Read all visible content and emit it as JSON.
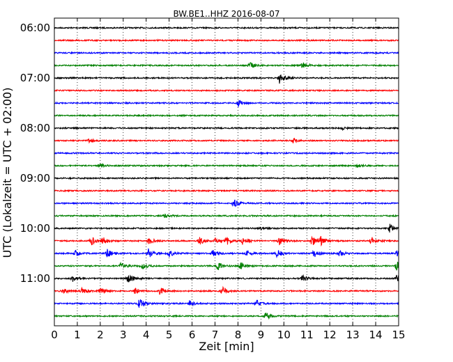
{
  "chart_data": {
    "type": "line",
    "title": "BW.BE1..HHZ 2016-08-07",
    "xlabel": "Zeit  [min]",
    "ylabel": "UTC (Lokalzeit = UTC + 02:00)",
    "xlim": [
      0,
      15
    ],
    "x_ticks": [
      0,
      1,
      2,
      3,
      4,
      5,
      6,
      7,
      8,
      9,
      10,
      11,
      12,
      13,
      14,
      15
    ],
    "x_tick_labels": [
      "0",
      "1",
      "2",
      "3",
      "4",
      "5",
      "6",
      "7",
      "8",
      "9",
      "10",
      "11",
      "12",
      "13",
      "14",
      "15"
    ],
    "y_tick_labels": [
      "06:00",
      "07:00",
      "08:00",
      "09:00",
      "10:00",
      "11:00"
    ],
    "grid": "vertical dotted",
    "colors": [
      "#000000",
      "#ff0000",
      "#0000ff",
      "#008000"
    ],
    "traces": [
      {
        "row": 0,
        "bursts": []
      },
      {
        "row": 1,
        "bursts": []
      },
      {
        "row": 2,
        "bursts": []
      },
      {
        "row": 3,
        "bursts": [
          [
            8.5,
            5
          ],
          [
            10.8,
            6
          ]
        ]
      },
      {
        "row": 4,
        "bursts": [
          [
            9.8,
            8
          ]
        ]
      },
      {
        "row": 5,
        "bursts": []
      },
      {
        "row": 6,
        "bursts": [
          [
            8.0,
            5
          ]
        ]
      },
      {
        "row": 7,
        "bursts": []
      },
      {
        "row": 8,
        "bursts": [
          [
            12.5,
            2
          ]
        ]
      },
      {
        "row": 9,
        "bursts": [
          [
            1.5,
            3
          ],
          [
            10.4,
            3
          ]
        ]
      },
      {
        "row": 10,
        "bursts": []
      },
      {
        "row": 11,
        "bursts": [
          [
            1.9,
            4
          ],
          [
            13.2,
            2
          ]
        ]
      },
      {
        "row": 12,
        "bursts": []
      },
      {
        "row": 13,
        "bursts": []
      },
      {
        "row": 14,
        "bursts": [
          [
            7.8,
            6
          ]
        ]
      },
      {
        "row": 15,
        "bursts": [
          [
            4.8,
            3
          ]
        ]
      },
      {
        "row": 16,
        "bursts": [
          [
            14.6,
            8
          ],
          [
            9.0,
            2
          ]
        ]
      },
      {
        "row": 17,
        "bursts": [
          [
            1.6,
            6
          ],
          [
            2.1,
            5
          ],
          [
            4.1,
            6
          ],
          [
            6.3,
            6
          ],
          [
            7.0,
            5
          ],
          [
            7.5,
            6
          ],
          [
            8.2,
            6
          ],
          [
            9.8,
            6
          ],
          [
            11.2,
            8
          ],
          [
            11.6,
            6
          ],
          [
            13.8,
            6
          ]
        ]
      },
      {
        "row": 18,
        "bursts": [
          [
            0.9,
            5
          ],
          [
            2.3,
            6
          ],
          [
            4.1,
            7
          ],
          [
            5.0,
            5
          ],
          [
            6.9,
            6
          ],
          [
            8.4,
            5
          ],
          [
            9.7,
            6
          ],
          [
            11.3,
            6
          ],
          [
            12.4,
            5
          ],
          [
            14.9,
            4
          ]
        ]
      },
      {
        "row": 19,
        "bursts": [
          [
            2.9,
            5
          ],
          [
            3.8,
            5
          ],
          [
            7.1,
            7
          ],
          [
            8.1,
            5
          ],
          [
            14.9,
            8
          ]
        ]
      },
      {
        "row": 20,
        "bursts": [
          [
            0.8,
            4
          ],
          [
            3.2,
            7
          ],
          [
            10.8,
            5
          ],
          [
            14.9,
            6
          ]
        ]
      },
      {
        "row": 21,
        "bursts": [
          [
            0.4,
            4
          ],
          [
            1.2,
            5
          ],
          [
            2.0,
            5
          ],
          [
            3.5,
            5
          ],
          [
            4.6,
            6
          ],
          [
            7.3,
            6
          ]
        ]
      },
      {
        "row": 22,
        "bursts": [
          [
            3.7,
            8
          ],
          [
            5.9,
            5
          ],
          [
            8.8,
            5
          ]
        ]
      },
      {
        "row": 23,
        "bursts": [
          [
            9.2,
            6
          ]
        ]
      }
    ]
  }
}
